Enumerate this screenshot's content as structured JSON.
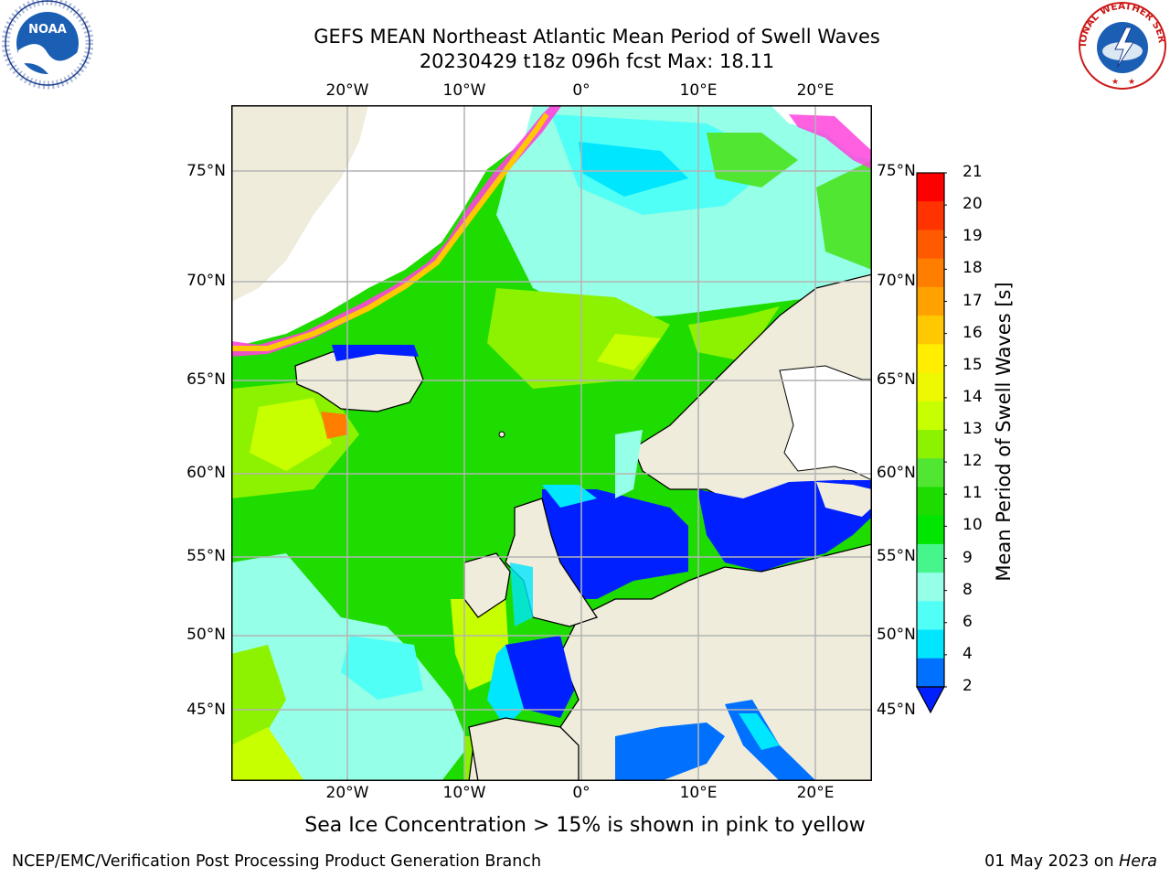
{
  "header": {
    "title": "GEFS MEAN Northeast Atlantic Mean Period of Swell Waves",
    "subtitle": "20230429 t18z 096h fcst   Max: 18.11"
  },
  "map": {
    "lon_ticks": [
      "20°W",
      "10°W",
      "0°",
      "10°E",
      "20°E"
    ],
    "lat_ticks_left": [
      "75°N",
      "70°N",
      "65°N",
      "60°N",
      "55°N",
      "50°N",
      "45°N"
    ],
    "lat_ticks_right": [
      "75°N",
      "70°N",
      "65°N",
      "60°N",
      "55°N",
      "50°N",
      "45°N"
    ],
    "colors": {
      "land": "#efecdc",
      "ice": "#ffffff",
      "grid": "#b4b4b4"
    }
  },
  "colorbar": {
    "label": "Mean Period of Swell Waves [s]",
    "ticks": [
      "21",
      "20",
      "19",
      "18",
      "17",
      "16",
      "15",
      "14",
      "13",
      "12",
      "11",
      "10",
      "9",
      "8",
      "6",
      "4",
      "2"
    ],
    "colors": [
      "#ff0000",
      "#ff3300",
      "#ff5a00",
      "#ff7e00",
      "#ffa200",
      "#ffc800",
      "#ffee00",
      "#eef800",
      "#c8ff00",
      "#8cf200",
      "#50e632",
      "#1edc00",
      "#00e600",
      "#46f58c",
      "#96ffe8",
      "#50fff5",
      "#00e6ff",
      "#0070ff"
    ],
    "under_color": "#0020ff"
  },
  "notes": {
    "ice": "Sea Ice Concentration > 15% is shown in pink to yellow"
  },
  "footer": {
    "left": "NCEP/EMC/Verification Post Processing Product Generation Branch",
    "right_date": "01 May 2023 on ",
    "right_host": "Hera"
  },
  "logos": {
    "left": {
      "icon": "noaa-logo",
      "text": "NOAA"
    },
    "right": {
      "icon": "nws-logo",
      "text": "NATIONAL WEATHER SERVICE"
    }
  }
}
